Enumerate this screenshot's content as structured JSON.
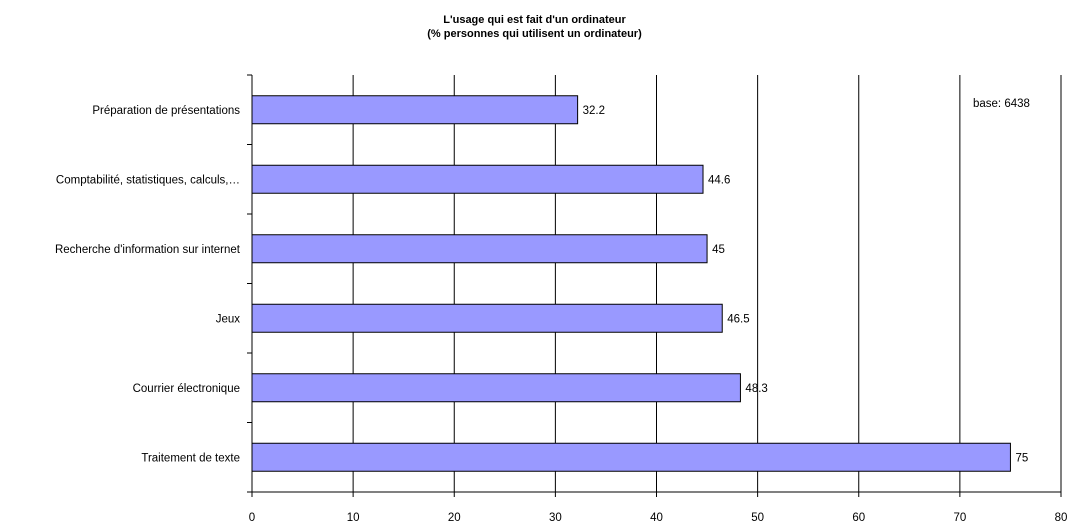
{
  "chart_data": {
    "type": "bar",
    "orientation": "horizontal",
    "title": "L'usage qui est fait d'un ordinateur",
    "subtitle": "(% personnes qui utilisent un ordinateur)",
    "annotation": "base: 6438",
    "categories": [
      "Préparation de présentations",
      "Comptabilité, statistiques, calculs,…",
      "Recherche d'information sur internet",
      "Jeux",
      "Courrier électronique",
      "Traitement de texte"
    ],
    "values": [
      32.2,
      44.6,
      45,
      46.5,
      48.3,
      75
    ],
    "value_labels": [
      "32.2",
      "44.6",
      "45",
      "46.5",
      "48.3",
      "75"
    ],
    "xlim": [
      0,
      80
    ],
    "x_ticks": [
      0,
      10,
      20,
      30,
      40,
      50,
      60,
      70,
      80
    ],
    "x_tick_labels": [
      "0",
      "10",
      "20",
      "30",
      "40",
      "50",
      "60",
      "70",
      "80"
    ],
    "grid": "vertical",
    "bar_color": "#9999ff",
    "bar_edge_color": "#000000"
  }
}
